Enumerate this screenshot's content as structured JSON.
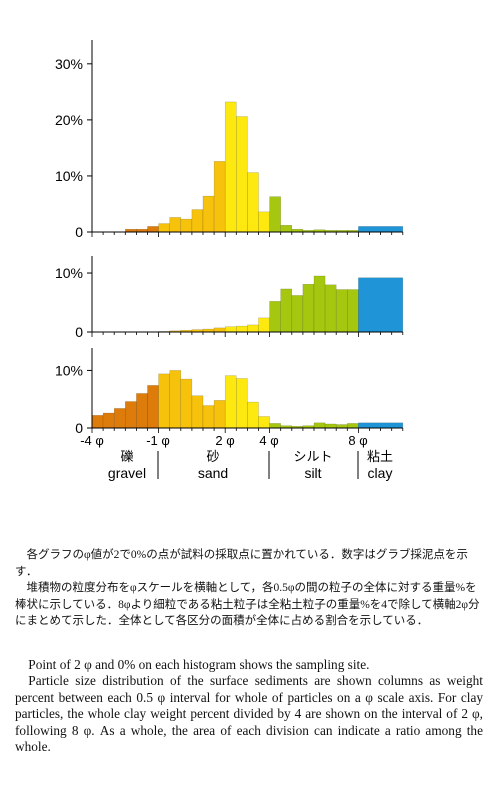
{
  "colors": {
    "gravel": "#de7c0b",
    "sand_coarse": "#f7c20c",
    "sand_fine": "#fde910",
    "silt": "#a6c710",
    "clay": "#1f94d6",
    "axis": "#000000"
  },
  "chart_data": [
    {
      "type": "bar",
      "panel": "top",
      "x_unit": "phi",
      "bin_width": 0.5,
      "ylim": [
        0,
        33
      ],
      "yticks": [
        0,
        10,
        20,
        30
      ],
      "ytick_labels": [
        "0",
        "10%",
        "20%",
        "30%"
      ],
      "x_start": [
        -3.5,
        -3.0,
        -2.5,
        -2.0,
        -1.5,
        -1.0,
        -0.5,
        0.0,
        0.5,
        1.0,
        1.5,
        2.0,
        2.5,
        3.0,
        3.5,
        4.0,
        4.5,
        5.0,
        5.5,
        6.0,
        6.5,
        7.0,
        7.5,
        8.0
      ],
      "bin_width_list": [
        0.5,
        0.5,
        0.5,
        0.5,
        0.5,
        0.5,
        0.5,
        0.5,
        0.5,
        0.5,
        0.5,
        0.5,
        0.5,
        0.5,
        0.5,
        0.5,
        0.5,
        0.5,
        0.5,
        0.5,
        0.5,
        0.5,
        0.5,
        2.0
      ],
      "values": [
        0,
        0,
        0.5,
        0.5,
        1.0,
        1.5,
        2.6,
        2.3,
        4.0,
        6.4,
        12.6,
        23.2,
        20.6,
        10.6,
        3.6,
        6.3,
        1.2,
        0.5,
        0.3,
        0.4,
        0.3,
        0.3,
        0.3,
        1.0
      ],
      "gravel_sand_colors": "by division"
    },
    {
      "type": "bar",
      "panel": "middle",
      "x_unit": "phi",
      "ylim": [
        0,
        11.7
      ],
      "yticks": [
        0,
        10
      ],
      "ytick_labels": [
        "0",
        "10%"
      ],
      "x_start": [
        -1.0,
        -0.5,
        0.0,
        0.5,
        1.0,
        1.5,
        2.0,
        2.5,
        3.0,
        3.5,
        4.0,
        4.5,
        5.0,
        5.5,
        6.0,
        6.5,
        7.0,
        7.5,
        8.0
      ],
      "bin_width_list": [
        0.5,
        0.5,
        0.5,
        0.5,
        0.5,
        0.5,
        0.5,
        0.5,
        0.5,
        0.5,
        0.5,
        0.5,
        0.5,
        0.5,
        0.5,
        0.5,
        0.5,
        0.5,
        2.0
      ],
      "values": [
        0.1,
        0.2,
        0.3,
        0.4,
        0.5,
        0.7,
        0.9,
        1.0,
        1.2,
        2.4,
        5.2,
        7.3,
        6.2,
        8.1,
        9.5,
        8.0,
        7.2,
        7.2,
        9.2
      ]
    },
    {
      "type": "bar",
      "panel": "bottom",
      "x_unit": "phi",
      "ylim": [
        0,
        13.2
      ],
      "yticks": [
        0,
        10
      ],
      "ytick_labels": [
        "0",
        "10%"
      ],
      "x_start": [
        -4.0,
        -3.5,
        -3.0,
        -2.5,
        -2.0,
        -1.5,
        -1.0,
        -0.5,
        0.0,
        0.5,
        1.0,
        1.5,
        2.0,
        2.5,
        3.0,
        3.5,
        4.0,
        4.5,
        5.0,
        5.5,
        6.0,
        6.5,
        7.0,
        7.5,
        8.0
      ],
      "bin_width_list": [
        0.5,
        0.5,
        0.5,
        0.5,
        0.5,
        0.5,
        0.5,
        0.5,
        0.5,
        0.5,
        0.5,
        0.5,
        0.5,
        0.5,
        0.5,
        0.5,
        0.5,
        0.5,
        0.5,
        0.5,
        0.5,
        0.5,
        0.5,
        0.5,
        2.0
      ],
      "values": [
        2.2,
        2.6,
        3.4,
        4.6,
        6.0,
        7.4,
        9.4,
        10.0,
        8.5,
        5.6,
        3.9,
        4.8,
        9.1,
        8.6,
        4.5,
        2.0,
        0.8,
        0.4,
        0.3,
        0.4,
        0.9,
        0.7,
        0.6,
        0.8,
        0.9
      ]
    }
  ],
  "x_axis": {
    "tick_labels": [
      {
        "phi": -4,
        "label": "-4 φ"
      },
      {
        "phi": -1,
        "label": "-1 φ"
      },
      {
        "phi": 2,
        "label": "2 φ"
      },
      {
        "phi": 4,
        "label": "4 φ"
      },
      {
        "phi": 8,
        "label": "8 φ"
      }
    ]
  },
  "divisions": [
    {
      "jp": "礫",
      "en": "gravel"
    },
    {
      "jp": "砂",
      "en": "sand"
    },
    {
      "jp": "シルト",
      "en": "silt"
    },
    {
      "jp": "粘土",
      "en": "clay"
    }
  ],
  "caption_jp": [
    "各グラフのφ値が2で0%の点が試料の採取点に置かれている．数字はグラブ採泥点を示す．",
    "堆積物の粒度分布をφスケールを横軸として，各0.5φの間の粒子の全体に対する重量%を棒状に示している．8φより細粒である粘土粒子は全粘土粒子の重量%を4で除して横軸2φ分にまとめて示した．全体として各区分の面積が全体に占める割合を示している．"
  ],
  "caption_en": [
    "Point of 2 φ and 0% on each histogram shows the sampling site.",
    "Particle size distribution of the surface sediments are shown columns as weight percent between each 0.5 φ interval for whole of particles on a φ scale axis. For clay particles, the whole clay weight percent divided by 4 are shown on the interval of 2 φ, following 8 φ. As a whole, the area of each division can indicate a ratio among the whole."
  ]
}
